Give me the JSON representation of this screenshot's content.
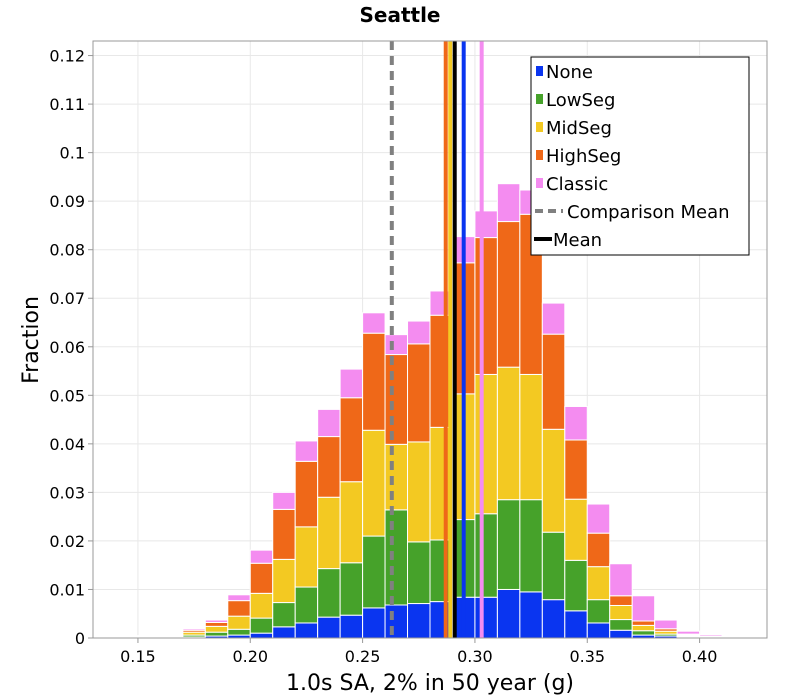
{
  "chart_data": {
    "type": "bar",
    "stacked": true,
    "title": "Seattle",
    "xlabel": "1.0s SA, 2% in 50 year (g)",
    "ylabel": "Fraction",
    "xlim": [
      0.13,
      0.43
    ],
    "ylim": [
      0,
      0.123
    ],
    "bin_width": 0.01,
    "x_ticks": [
      "0.15",
      "0.20",
      "0.25",
      "0.30",
      "0.35",
      "0.40"
    ],
    "y_ticks": [
      "0",
      "0.01",
      "0.02",
      "0.03",
      "0.04",
      "0.05",
      "0.06",
      "0.07",
      "0.08",
      "0.09",
      "0.1",
      "0.11",
      "0.12"
    ],
    "x_tick_values": [
      0.15,
      0.2,
      0.25,
      0.3,
      0.35,
      0.4
    ],
    "y_tick_values": [
      0,
      0.01,
      0.02,
      0.03,
      0.04,
      0.05,
      0.06,
      0.07,
      0.08,
      0.09,
      0.1,
      0.11,
      0.12
    ],
    "grid": true,
    "legend_position": "top-right",
    "bin_starts": [
      0.14,
      0.15,
      0.16,
      0.17,
      0.18,
      0.19,
      0.2,
      0.21,
      0.22,
      0.23,
      0.24,
      0.25,
      0.26,
      0.27,
      0.28,
      0.29,
      0.3,
      0.31,
      0.32,
      0.33,
      0.34,
      0.35,
      0.36,
      0.37,
      0.38,
      0.39,
      0.4,
      0.41
    ],
    "series": [
      {
        "name": "None",
        "color": "#0a35f0",
        "values": [
          0.0,
          0.0001,
          0.0001,
          0.0002,
          0.0004,
          0.0006,
          0.001,
          0.0023,
          0.0031,
          0.0043,
          0.0047,
          0.0062,
          0.0068,
          0.0071,
          0.0075,
          0.0084,
          0.0084,
          0.01,
          0.0095,
          0.0079,
          0.0056,
          0.0031,
          0.0016,
          0.0006,
          0.0004,
          0.0002,
          0.0001,
          0.0
        ]
      },
      {
        "name": "LowSeg",
        "color": "#46a22a",
        "values": [
          0.0,
          0.0001,
          0.0002,
          0.0004,
          0.0008,
          0.0012,
          0.0031,
          0.005,
          0.0074,
          0.01,
          0.0108,
          0.0148,
          0.0196,
          0.0127,
          0.0127,
          0.016,
          0.0172,
          0.0185,
          0.019,
          0.0139,
          0.0104,
          0.0048,
          0.0022,
          0.0009,
          0.0004,
          0.0002,
          0.0001,
          0.0
        ]
      },
      {
        "name": "MidSeg",
        "color": "#f3c922",
        "values": [
          0.0,
          0.0001,
          0.0002,
          0.0006,
          0.0012,
          0.0027,
          0.0051,
          0.0089,
          0.0124,
          0.0147,
          0.0167,
          0.0218,
          0.0135,
          0.0206,
          0.0232,
          0.0259,
          0.0287,
          0.0273,
          0.0258,
          0.0212,
          0.0126,
          0.0068,
          0.0029,
          0.0011,
          0.0006,
          0.0002,
          0.0001,
          0.0
        ]
      },
      {
        "name": "HighSeg",
        "color": "#ef6818",
        "values": [
          0.0,
          0.0001,
          0.0002,
          0.0004,
          0.0008,
          0.0032,
          0.0062,
          0.0103,
          0.0135,
          0.0125,
          0.0173,
          0.02,
          0.0185,
          0.0202,
          0.0231,
          0.027,
          0.0282,
          0.03,
          0.033,
          0.0196,
          0.0122,
          0.0069,
          0.002,
          0.0009,
          0.0005,
          0.0002,
          0.0001,
          0.0
        ]
      },
      {
        "name": "Classic",
        "color": "#f48cf0",
        "values": [
          0.0,
          0.0001,
          0.0002,
          0.0003,
          0.0005,
          0.0012,
          0.0027,
          0.0035,
          0.0042,
          0.0056,
          0.0059,
          0.0042,
          0.0041,
          0.0047,
          0.005,
          0.0054,
          0.0055,
          0.0078,
          0.005,
          0.0064,
          0.0069,
          0.006,
          0.0066,
          0.0052,
          0.0018,
          0.0006,
          0.0003,
          0.0001
        ]
      }
    ],
    "vertical_lines": [
      {
        "name": "Comparison Mean",
        "x": 0.263,
        "color": "#808080",
        "dashed": true
      },
      {
        "name": "Mean",
        "x": 0.291,
        "color": "#000000",
        "dashed": false
      },
      {
        "name": "None",
        "x": 0.295,
        "color": "#0a35f0",
        "dashed": false
      },
      {
        "name": "MidSeg",
        "x": 0.289,
        "color": "#f3c922",
        "dashed": false
      },
      {
        "name": "HighSeg",
        "x": 0.287,
        "color": "#ef6818",
        "dashed": false
      },
      {
        "name": "Classic",
        "x": 0.303,
        "color": "#f48cf0",
        "dashed": false
      }
    ],
    "legend": [
      {
        "label": "None",
        "color": "#0a35f0",
        "kind": "box"
      },
      {
        "label": "LowSeg",
        "color": "#46a22a",
        "kind": "box"
      },
      {
        "label": "MidSeg",
        "color": "#f3c922",
        "kind": "box"
      },
      {
        "label": "HighSeg",
        "color": "#ef6818",
        "kind": "box"
      },
      {
        "label": "Classic",
        "color": "#f48cf0",
        "kind": "box"
      },
      {
        "label": "Comparison Mean",
        "color": "#808080",
        "kind": "dash"
      },
      {
        "label": "Mean",
        "color": "#000000",
        "kind": "line"
      }
    ]
  }
}
